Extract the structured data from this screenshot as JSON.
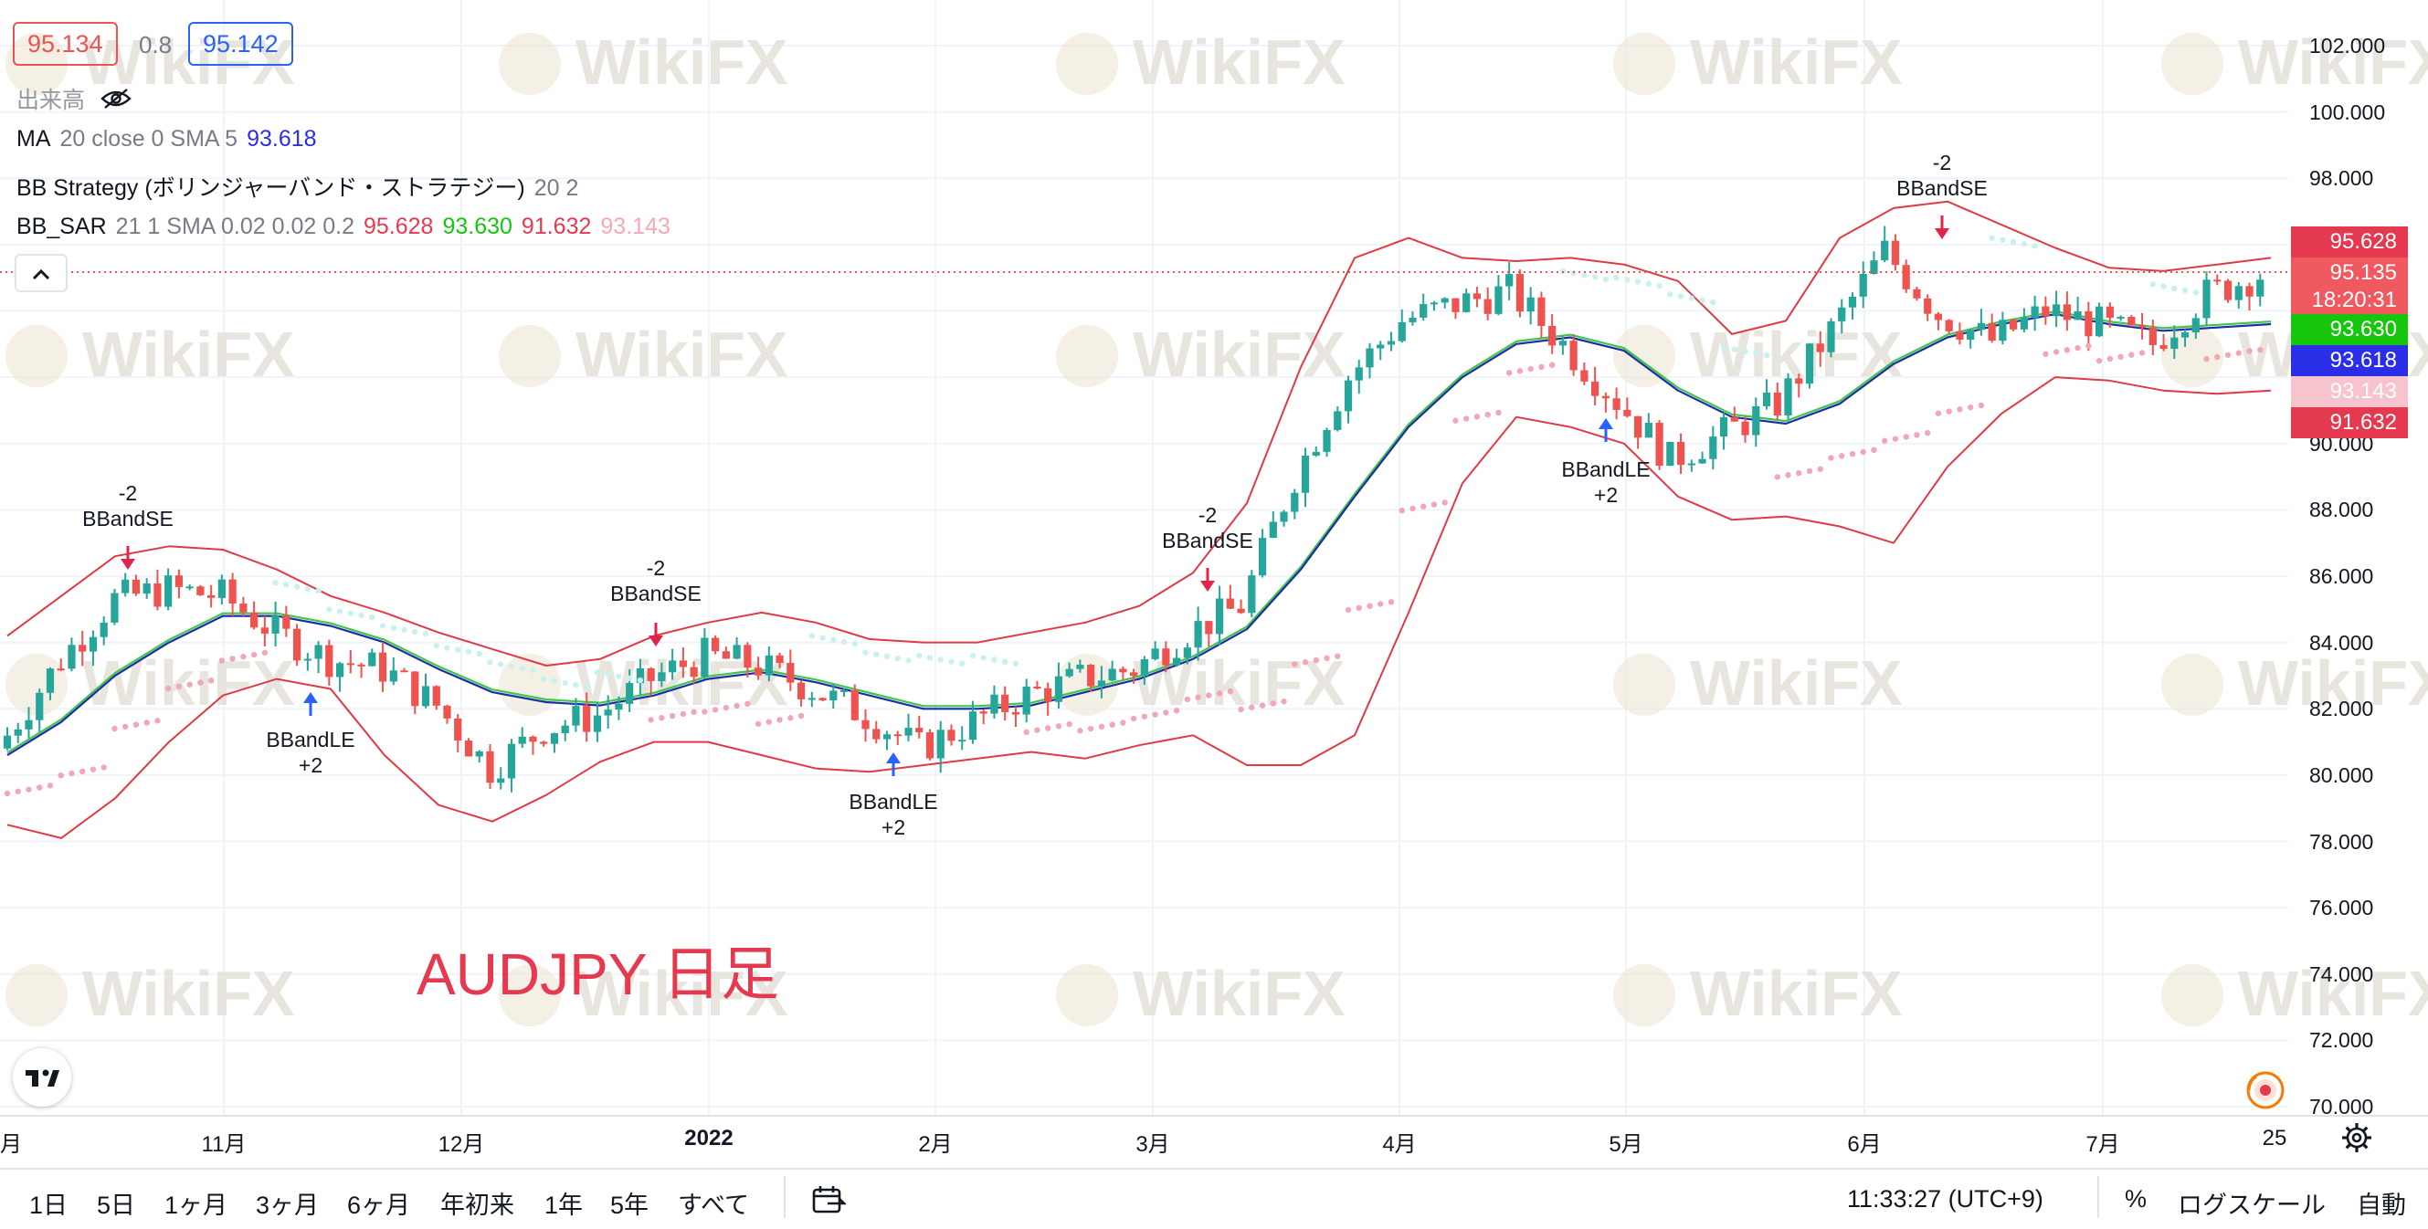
{
  "header": {
    "bid": "95.134",
    "spread": "0.8",
    "ask": "95.142"
  },
  "legend": {
    "volume_label": "出来高",
    "ma": {
      "name": "MA",
      "params": "20 close 0 SMA 5",
      "value": "93.618"
    },
    "bb_strategy": {
      "name": "BB Strategy (ボリンジャーバンド・ストラテジー)",
      "params": "20 2"
    },
    "bb_sar": {
      "name": "BB_SAR",
      "params": "21 1 SMA 0.02 0.02 0.2",
      "values": [
        "95.628",
        "93.630",
        "91.632",
        "93.143"
      ]
    }
  },
  "colors": {
    "up": "#26a69a",
    "down": "#ef5350",
    "band": "#e03a44",
    "ma_blue": "#1e2ca8",
    "ma_green": "#3ec74a",
    "sar": "#f2a7b6",
    "accent_blue": "#2962ff"
  },
  "price_axis": {
    "labels": [
      "102.000",
      "100.000",
      "98.000",
      "96.000",
      "94.000",
      "92.000",
      "90.000",
      "88.000",
      "86.000",
      "84.000",
      "82.000",
      "80.000",
      "78.000",
      "76.000",
      "74.000",
      "72.000",
      "70.000"
    ],
    "tags": [
      {
        "text": "95.628",
        "color": "#e53950"
      },
      {
        "text": "95.135",
        "color": "#f0595f"
      },
      {
        "text": "18:20:31",
        "color": "#f0595f"
      },
      {
        "text": "93.630",
        "color": "#16c60c"
      },
      {
        "text": "93.618",
        "color": "#2a2ee6"
      },
      {
        "text": "93.143",
        "color": "#f7c3cc"
      },
      {
        "text": "91.632",
        "color": "#e53950"
      }
    ]
  },
  "time_axis": {
    "labels": [
      "月",
      "11月",
      "12月",
      "2022",
      "2月",
      "3月",
      "4月",
      "5月",
      "6月",
      "7月",
      "25"
    ]
  },
  "signals": [
    {
      "line1": "-2",
      "line2": "BBandSE"
    },
    {
      "line1": "BBandLE",
      "line2": "+2"
    },
    {
      "line1": "-2",
      "line2": "BBandSE"
    },
    {
      "line1": "BBandLE",
      "line2": "+2"
    },
    {
      "line1": "-2",
      "line2": "BBandSE"
    },
    {
      "line1": "BBandLE",
      "line2": "+2"
    },
    {
      "line1": "-2",
      "line2": "BBandSE"
    }
  ],
  "watermark": "WikiFX",
  "annotation": "AUDJPY 日足",
  "bottom_bar": {
    "timeframes": [
      "1日",
      "5日",
      "1ヶ月",
      "3ヶ月",
      "6ヶ月",
      "年初来",
      "1年",
      "5年",
      "すべて"
    ],
    "clock": "11:33:27 (UTC+9)",
    "percent": "%",
    "log_scale": "ログスケール",
    "auto": "自動"
  },
  "chart_data": {
    "type": "candlestick",
    "symbol": "AUDJPY",
    "ylim": [
      70,
      102
    ],
    "x": [
      "2021-10-01",
      "2021-10-08",
      "2021-10-15",
      "2021-10-22",
      "2021-10-29",
      "2021-11-05",
      "2021-11-12",
      "2021-11-19",
      "2021-11-26",
      "2021-12-03",
      "2021-12-10",
      "2021-12-17",
      "2021-12-24",
      "2021-12-31",
      "2022-01-07",
      "2022-01-14",
      "2022-01-21",
      "2022-01-28",
      "2022-02-04",
      "2022-02-11",
      "2022-02-18",
      "2022-02-25",
      "2022-03-04",
      "2022-03-11",
      "2022-03-18",
      "2022-03-25",
      "2022-04-01",
      "2022-04-08",
      "2022-04-15",
      "2022-04-22",
      "2022-04-29",
      "2022-05-06",
      "2022-05-13",
      "2022-05-20",
      "2022-05-27",
      "2022-06-03",
      "2022-06-10",
      "2022-06-17",
      "2022-06-24",
      "2022-07-01",
      "2022-07-08",
      "2022-07-15",
      "2022-07-22"
    ],
    "series": [
      {
        "name": "close",
        "values": [
          81.2,
          83.5,
          85.3,
          85.6,
          85.4,
          84.3,
          83.5,
          83.2,
          82.1,
          80.2,
          81.4,
          81.8,
          82.9,
          83.6,
          83.3,
          82.6,
          81.8,
          80.8,
          81.6,
          82.4,
          82.9,
          83.2,
          84.3,
          85.1,
          89.0,
          92.0,
          93.7,
          94.2,
          94.6,
          93.0,
          91.3,
          89.5,
          90.3,
          91.2,
          93.4,
          95.8,
          93.9,
          93.1,
          94.0,
          93.6,
          93.0,
          94.5,
          95.1
        ]
      },
      {
        "name": "MA",
        "values": [
          80.6,
          81.6,
          83.0,
          84.0,
          84.8,
          84.8,
          84.5,
          84.0,
          83.2,
          82.5,
          82.2,
          82.1,
          82.4,
          82.9,
          83.1,
          82.8,
          82.4,
          82.0,
          82.0,
          82.1,
          82.5,
          82.9,
          83.5,
          84.4,
          86.2,
          88.4,
          90.5,
          92.0,
          93.0,
          93.2,
          92.8,
          91.6,
          90.8,
          90.6,
          91.2,
          92.4,
          93.2,
          93.6,
          93.9,
          93.6,
          93.4,
          93.5,
          93.6
        ]
      },
      {
        "name": "Upper band",
        "values": [
          84.2,
          85.4,
          86.6,
          86.9,
          86.8,
          86.2,
          85.4,
          84.9,
          84.3,
          83.8,
          83.3,
          83.5,
          84.2,
          84.6,
          84.9,
          84.6,
          84.1,
          84.0,
          84.0,
          84.3,
          84.6,
          85.1,
          86.1,
          88.2,
          92.3,
          95.6,
          96.2,
          95.6,
          95.5,
          95.6,
          95.4,
          94.9,
          93.3,
          93.7,
          96.2,
          97.1,
          97.3,
          96.6,
          95.9,
          95.3,
          95.2,
          95.4,
          95.6
        ]
      },
      {
        "name": "Lower band",
        "values": [
          78.5,
          78.1,
          79.3,
          81.0,
          82.4,
          82.9,
          82.6,
          80.6,
          79.1,
          78.6,
          79.4,
          80.4,
          81.0,
          81.0,
          80.6,
          80.2,
          80.1,
          80.3,
          80.5,
          80.7,
          80.5,
          80.9,
          81.2,
          80.3,
          80.3,
          81.2,
          84.9,
          88.8,
          90.8,
          90.5,
          90.0,
          88.4,
          87.7,
          87.8,
          87.5,
          87.0,
          89.3,
          90.9,
          92.0,
          91.9,
          91.6,
          91.5,
          91.6
        ]
      }
    ]
  }
}
